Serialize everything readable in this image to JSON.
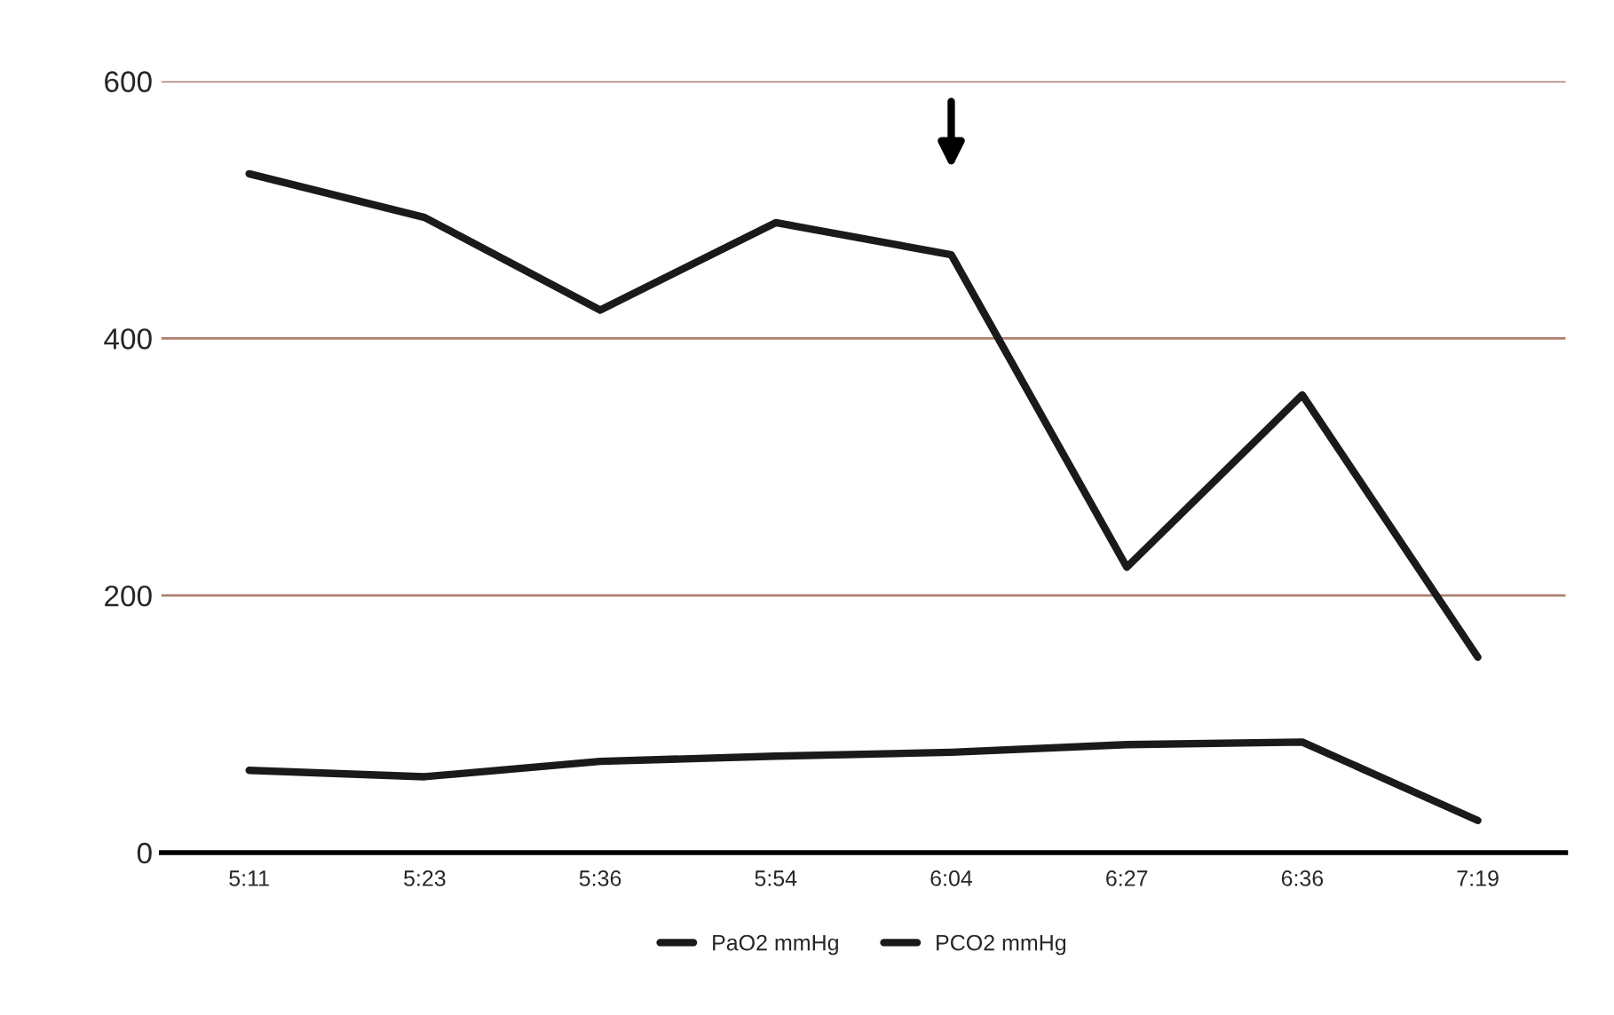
{
  "chart_data": {
    "type": "line",
    "categories": [
      "5:11",
      "5:23",
      "5:36",
      "5:54",
      "6:04",
      "6:27",
      "6:36",
      "7:19"
    ],
    "series": [
      {
        "name": "PaO2 mmHg",
        "color": "#1a1a1a",
        "values": [
          528,
          494,
          422,
          490,
          465,
          222,
          356,
          152
        ]
      },
      {
        "name": "PCO2 mmHg",
        "color": "#1a1a1a",
        "values": [
          64,
          59,
          71,
          75,
          78,
          84,
          86,
          25
        ]
      }
    ],
    "ylim": [
      0,
      600
    ],
    "yticks": [
      0,
      200,
      400,
      600
    ],
    "grid": "y",
    "legend": "bottom",
    "marker": "none",
    "line_style": "solid"
  }
}
